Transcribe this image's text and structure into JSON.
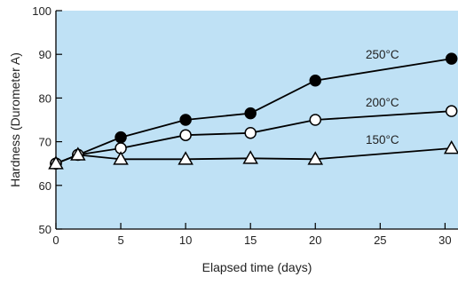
{
  "chart_data": {
    "type": "line",
    "xlabel": "Elapsed time (days)",
    "ylabel": "Hardness (Durometer A)",
    "xlim": [
      0,
      31
    ],
    "ylim": [
      50,
      100
    ],
    "xticks": [
      0,
      5,
      10,
      15,
      20,
      25,
      30
    ],
    "yticks": [
      50,
      60,
      70,
      80,
      90,
      100
    ],
    "grid": false,
    "background_color": "#bfe1f5",
    "line_color": "#000000",
    "series": [
      {
        "name": "250°C",
        "marker": "filled-circle",
        "x": [
          0,
          1.7,
          5,
          10,
          15,
          20,
          30.5
        ],
        "y": [
          65,
          67,
          71,
          75,
          76.5,
          84,
          89
        ]
      },
      {
        "name": "200°C",
        "marker": "open-circle",
        "x": [
          0,
          1.7,
          5,
          10,
          15,
          20,
          30.5
        ],
        "y": [
          65,
          67,
          68.5,
          71.5,
          72,
          75,
          77
        ]
      },
      {
        "name": "150°C",
        "marker": "open-triangle",
        "x": [
          0,
          1.7,
          5,
          10,
          15,
          20,
          30.5
        ],
        "y": [
          65,
          67,
          66,
          66,
          66.2,
          66,
          68.5
        ]
      }
    ]
  }
}
